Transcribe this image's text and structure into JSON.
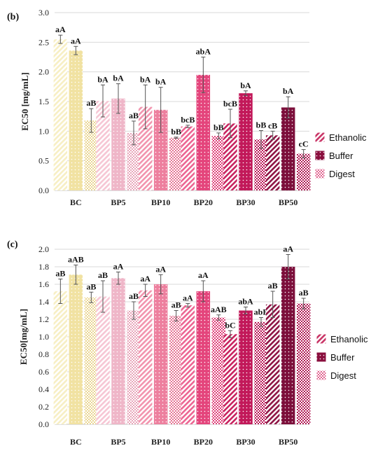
{
  "colors": {
    "BC": [
      "#f7efc4",
      "#f1e2a2",
      "#ead693"
    ],
    "BP5": [
      "#f6c6d4",
      "#efb6c8",
      "#e8a6ba"
    ],
    "BP10": [
      "#f294ae",
      "#ed7f9e",
      "#e57594"
    ],
    "BP20": [
      "#ec6592",
      "#e4457c",
      "#de3f78"
    ],
    "BP30": [
      "#c8235f",
      "#c2195a",
      "#b91656"
    ],
    "BP50": [
      "#8e1444",
      "#7c0f3b",
      "#b01a54"
    ],
    "legend": [
      "#c93466",
      "#8a0f3e",
      "#e0638f"
    ],
    "error_bar": "#555555",
    "grid": "#d9d9d9"
  },
  "chart_data": [
    {
      "type": "bar",
      "panel_label": "(b)",
      "categories": [
        "BC",
        "BP5",
        "BP10",
        "BP20",
        "BP30",
        "BP50"
      ],
      "ylabel": "EC50 [mg/mL]",
      "ylim": [
        0,
        3.0
      ],
      "yticks": [
        "0.0",
        "0.5",
        "1.0",
        "1.5",
        "2.0",
        "2.5",
        "3.0"
      ],
      "grid": true,
      "legend_position": "right",
      "series": [
        {
          "name": "Ethanolic",
          "pattern": "diagonal-stripes",
          "values": [
            2.55,
            1.51,
            1.41,
            1.08,
            1.13,
            0.93
          ],
          "errors": [
            0.07,
            0.27,
            0.37,
            0.02,
            0.24,
            0.07
          ],
          "labels": [
            "aA",
            "bA",
            "bA",
            "bcB",
            "bcB",
            "cB"
          ]
        },
        {
          "name": "Buffer",
          "pattern": "dots",
          "values": [
            2.36,
            1.55,
            1.36,
            1.95,
            1.64,
            1.4
          ],
          "errors": [
            0.07,
            0.25,
            0.38,
            0.3,
            0.04,
            0.18
          ],
          "labels": [
            "aA",
            "bA",
            "bA",
            "abA",
            "bA",
            "bA"
          ]
        },
        {
          "name": "Digest",
          "pattern": "checkers",
          "values": [
            1.18,
            0.97,
            0.89,
            0.92,
            0.86,
            0.62
          ],
          "errors": [
            0.2,
            0.2,
            0.01,
            0.05,
            0.15,
            0.07
          ],
          "labels": [
            "aB",
            "aB",
            "bB",
            "bB",
            "bB",
            "cC"
          ]
        }
      ]
    },
    {
      "type": "bar",
      "panel_label": "(c)",
      "categories": [
        "BC",
        "BP5",
        "BP10",
        "BP20",
        "BP30",
        "BP50"
      ],
      "ylabel": "EC50[mg/mL]",
      "ylim": [
        0,
        2.0
      ],
      "yticks": [
        "0.0",
        "0.2",
        "0.4",
        "0.6",
        "0.8",
        "1.0",
        "1.2",
        "1.4",
        "1.6",
        "1.8",
        "2.0"
      ],
      "grid": true,
      "legend_position": "right",
      "series": [
        {
          "name": "Ethanolic",
          "pattern": "diagonal-stripes",
          "values": [
            1.52,
            1.46,
            1.53,
            1.36,
            1.03,
            1.37
          ],
          "errors": [
            0.14,
            0.18,
            0.07,
            0.02,
            0.04,
            0.15
          ],
          "labels": [
            "aB",
            "aB",
            "aA",
            "aA",
            "bC",
            "aB"
          ]
        },
        {
          "name": "Buffer",
          "pattern": "dots",
          "values": [
            1.71,
            1.67,
            1.6,
            1.52,
            1.3,
            1.8
          ],
          "errors": [
            0.11,
            0.07,
            0.11,
            0.12,
            0.04,
            0.14
          ],
          "labels": [
            "aAB",
            "aA",
            "aA",
            "aA",
            "abA",
            "aA"
          ]
        },
        {
          "name": "Digest",
          "pattern": "checkers",
          "values": [
            1.45,
            1.3,
            1.24,
            1.22,
            1.17,
            1.38
          ],
          "errors": [
            0.06,
            0.1,
            0.06,
            0.03,
            0.05,
            0.06
          ],
          "labels": [
            "aB",
            "aB",
            "aB",
            "aAB",
            "abB",
            "aB"
          ]
        }
      ]
    }
  ]
}
